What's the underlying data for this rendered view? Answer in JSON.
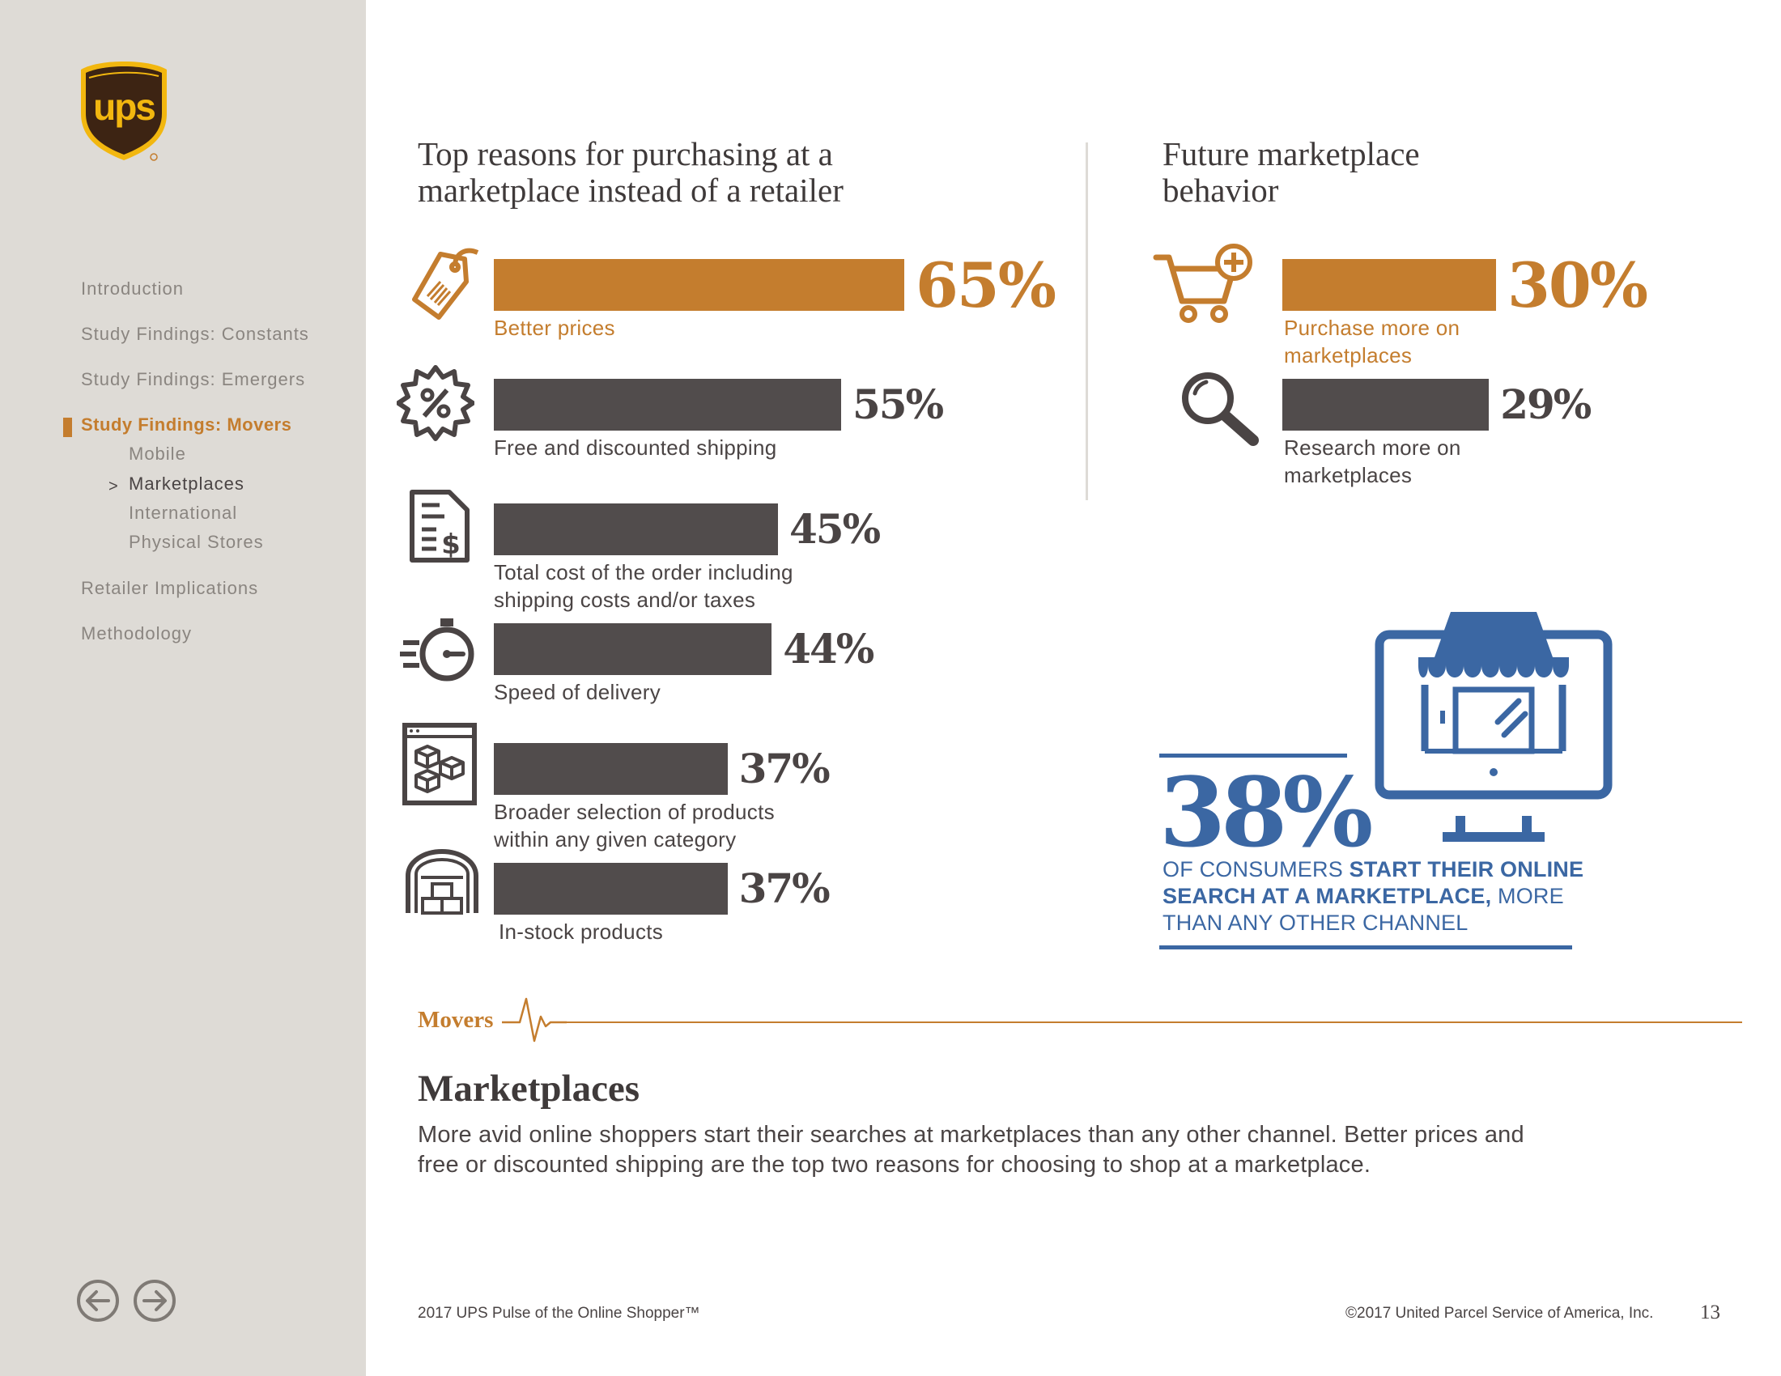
{
  "sidebar": {
    "logo_text": "ups",
    "nav": [
      {
        "label": "Introduction"
      },
      {
        "label": "Study Findings: Constants"
      },
      {
        "label": "Study Findings: Emergers"
      },
      {
        "label": "Study Findings: Movers"
      },
      {
        "label": "Retailer Implications"
      },
      {
        "label": "Methodology"
      }
    ],
    "sub_nav": [
      {
        "label": "Mobile"
      },
      {
        "label": "Marketplaces"
      },
      {
        "label": "International"
      },
      {
        "label": "Physical Stores"
      }
    ],
    "current_marker": ">",
    "prev_icon": "arrow-left-icon",
    "next_icon": "arrow-right-icon"
  },
  "left_chart": {
    "heading_line1": "Top reasons for purchasing at a",
    "heading_line2": "marketplace instead of a retailer"
  },
  "right_chart": {
    "heading_line1": "Future marketplace",
    "heading_line2": "behavior"
  },
  "chart_data": [
    {
      "type": "bar",
      "orientation": "horizontal",
      "title": "Top reasons for purchasing at a marketplace instead of a retailer",
      "categories": [
        "Better prices",
        "Free and discounted shipping",
        "Total cost of the order including shipping costs and/or taxes",
        "Speed of delivery",
        "Broader selection of products within any given category",
        "In-stock products"
      ],
      "label_lines": [
        [
          "Better prices"
        ],
        [
          "Free and discounted shipping"
        ],
        [
          "Total cost of the order including",
          "shipping costs and/or taxes"
        ],
        [
          "Speed of delivery"
        ],
        [
          "Broader selection of products",
          "within any given category"
        ],
        [
          "In-stock products"
        ]
      ],
      "values": [
        65,
        55,
        45,
        44,
        37,
        37
      ],
      "value_labels": [
        "65%",
        "55%",
        "45%",
        "44%",
        "37%",
        "37%"
      ],
      "icons": [
        "price-tag-icon",
        "discount-badge-icon",
        "invoice-icon",
        "stopwatch-icon",
        "boxes-icon",
        "warehouse-icon"
      ],
      "highlight_index": 0,
      "unit": "%"
    },
    {
      "type": "bar",
      "orientation": "horizontal",
      "title": "Future marketplace behavior",
      "categories": [
        "Purchase more on marketplaces",
        "Research more on marketplaces"
      ],
      "label_lines": [
        [
          "Purchase more on",
          "marketplaces"
        ],
        [
          "Research more on",
          "marketplaces"
        ]
      ],
      "values": [
        30,
        29
      ],
      "value_labels": [
        "30%",
        "29%"
      ],
      "icons": [
        "cart-plus-icon",
        "magnifier-icon"
      ],
      "highlight_index": 0,
      "unit": "%"
    }
  ],
  "stat": {
    "value": "38%",
    "pre": "OF CONSUMERS ",
    "bold1": "START THEIR ONLINE SEARCH AT A MARKETPLACE,",
    "post": " MORE THAN ANY OTHER CHANNEL",
    "icon": "storefront-monitor-icon"
  },
  "section": {
    "label": "Movers",
    "pulse_icon": "heartbeat-icon",
    "title": "Marketplaces",
    "body": "More avid online shoppers start their searches at marketplaces than any other channel. Better prices and free or discounted shipping are the top two reasons for choosing to shop at a marketplace."
  },
  "footer": {
    "left": "2017 UPS Pulse of the Online Shopper™",
    "right": "©2017 United Parcel Service of America, Inc.",
    "page": "13"
  },
  "colors": {
    "orange": "#c47d2e",
    "dark": "#514c4c",
    "blue": "#3b67a3",
    "sidebar": "#dedbd6"
  }
}
